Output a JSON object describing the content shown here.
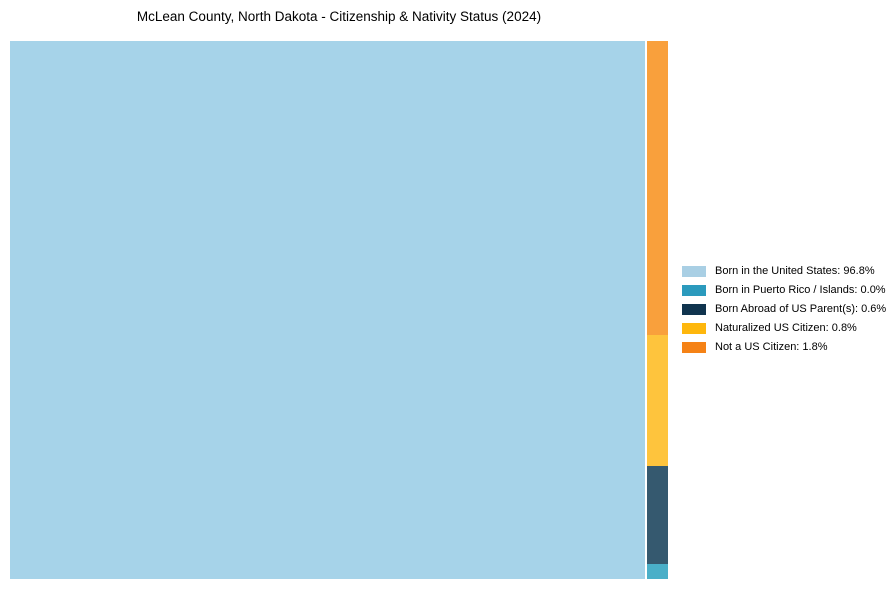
{
  "title": "McLean County, North Dakota - Citizenship & Nativity Status (2024)",
  "chart_data": {
    "type": "treemap",
    "title": "McLean County, North Dakota - Citizenship & Nativity Status (2024)",
    "unit": "percent",
    "categories": [
      "Born in the United States",
      "Born in Puerto Rico / Islands",
      "Born Abroad of US Parent(s)",
      "Naturalized US Citizen",
      "Not a US Citizen"
    ],
    "values": [
      96.8,
      0.0,
      0.6,
      0.8,
      1.8
    ],
    "legend_labels": [
      "Born in the United States: 96.8%",
      "Born in Puerto Rico / Islands: 0.0%",
      "Born Abroad of US Parent(s): 0.6%",
      "Naturalized US Citizen: 0.8%",
      "Not a US Citizen: 1.8%"
    ],
    "legend_position": "right-center",
    "background": "#ffffff",
    "text_color": "#000000",
    "colors": {
      "legend": [
        "#a9cfe4",
        "#2b9abd",
        "#10344e",
        "#feb70d",
        "#f58216"
      ],
      "plot": [
        "#a6d3e9",
        "#4aafc8",
        "#35596f",
        "#fec43d",
        "#f9a03c"
      ]
    }
  }
}
